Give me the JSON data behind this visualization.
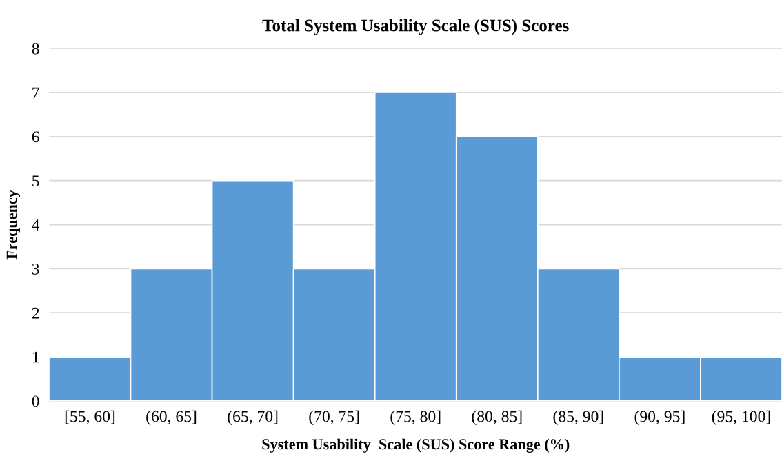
{
  "chart_data": {
    "type": "bar",
    "title": "Total System Usability Scale (SUS) Scores",
    "xlabel": "System Usability  Scale (SUS) Score Range (%)",
    "ylabel": "Frequency",
    "categories": [
      "[55, 60]",
      "(60, 65]",
      "(65, 70]",
      "(70, 75]",
      "(75, 80]",
      "(80, 85]",
      "(85, 90]",
      "(90, 95]",
      "(95, 100]"
    ],
    "values": [
      1,
      3,
      5,
      3,
      7,
      6,
      3,
      1,
      1
    ],
    "color": "#5b9bd5",
    "ylim": [
      0,
      8
    ],
    "yticks": [
      0,
      1,
      2,
      3,
      4,
      5,
      6,
      7,
      8
    ],
    "grid": "y",
    "legend": false
  }
}
